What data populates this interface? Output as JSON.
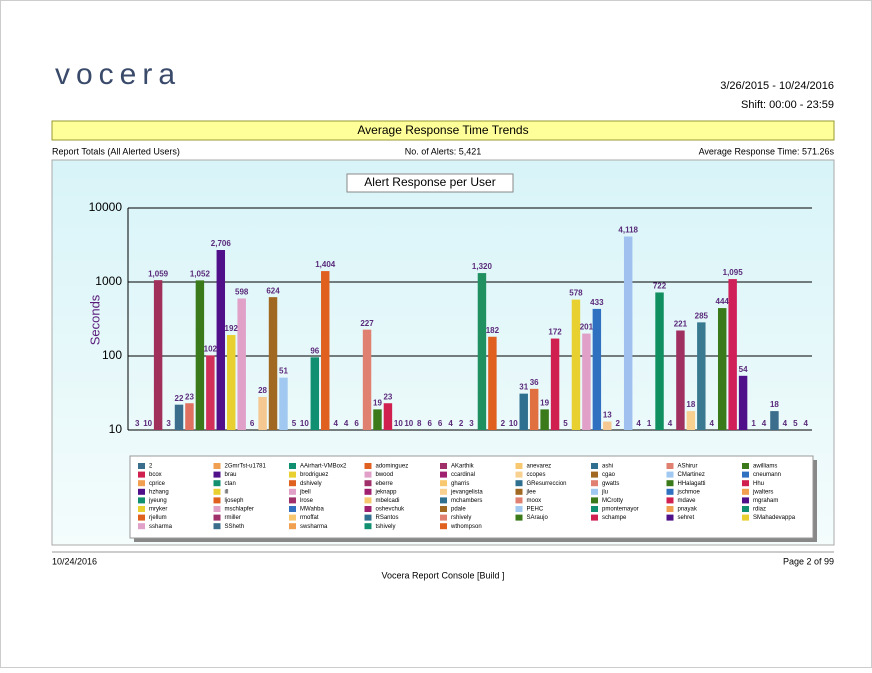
{
  "header": {
    "logo": "vocera",
    "date_range": "3/26/2015 - 10/24/2016",
    "shift": "Shift: 00:00 - 23:59"
  },
  "report": {
    "title": "Average Response Time Trends",
    "totals_label": "Report Totals (All Alerted Users)",
    "alerts": "No. of Alerts: 5,421",
    "avg_time": "Average Response Time: 571.26s"
  },
  "chart_data": {
    "type": "bar",
    "title": "Alert Response per User",
    "y_label": "Seconds",
    "log_scale": true,
    "grid": true,
    "ylim": [
      10,
      10000
    ],
    "yticks": [
      10,
      100,
      1000,
      10000
    ],
    "values": [
      3,
      10,
      1059,
      3,
      22,
      23,
      1052,
      102,
      2706,
      192,
      598,
      6,
      28,
      624,
      51,
      5,
      10,
      96,
      1404,
      4,
      4,
      6,
      227,
      19,
      23,
      10,
      10,
      8,
      6,
      6,
      4,
      2,
      3,
      1320,
      182,
      2,
      10,
      31,
      36,
      19,
      172,
      5,
      578,
      201,
      433,
      13,
      2,
      4118,
      4,
      1,
      722,
      4,
      221,
      18,
      285,
      4,
      444,
      1095,
      54,
      1,
      4,
      18,
      4,
      5,
      4
    ],
    "value_labels": [
      "3",
      "10",
      "1,059",
      "3",
      "22",
      "23",
      "1,052",
      "102",
      "2,706",
      "192",
      "598",
      "6",
      "28",
      "624",
      "51",
      "5",
      "10",
      "96",
      "1,404",
      "4",
      "4",
      "6",
      "227",
      "19",
      "23",
      "10",
      "10",
      "8",
      "6",
      "6",
      "4",
      "2",
      "3",
      "1,320",
      "182",
      "2",
      "10",
      "31",
      "36",
      "19",
      "172",
      "5",
      "578",
      "201",
      "433",
      "13",
      "2",
      "4,118",
      "4",
      "1",
      "722",
      "4",
      "221",
      "18",
      "285",
      "4",
      "444",
      "1,095",
      "54",
      "1",
      "4",
      "18",
      "4",
      "5",
      "4"
    ],
    "colors": [
      "#2f6f8f",
      "#f0a050",
      "#a0305a",
      "#a06820",
      "#3b6e8c",
      "#e07060",
      "#3a7a1a",
      "#d0305a",
      "#50108a",
      "#e8d030",
      "#e0a0c8",
      "#f0a050",
      "#f4c890",
      "#a06820",
      "#a0c8f0",
      "#3070c0",
      "#f0a050",
      "#109070",
      "#e06020",
      "#a0305a",
      "#3a7a1a",
      "#d02050",
      "#e08070",
      "#3a7a1a",
      "#d02050",
      "#e8d030",
      "#f0a050",
      "#a06820",
      "#a0c8f0",
      "#3070c0",
      "#a0305a",
      "#e06020",
      "#3a7a1a",
      "#209060",
      "#e06020",
      "#a0305a",
      "#f0a050",
      "#2f6f8f",
      "#e07040",
      "#3a7a1a",
      "#d02050",
      "#e8d030",
      "#e8d030",
      "#e0a0c8",
      "#3070c0",
      "#f4c890",
      "#a06820",
      "#a0c0f0",
      "#2f6f8f",
      "#e06020",
      "#109060",
      "#3a7a1a",
      "#a03060",
      "#f8d090",
      "#3a7a90",
      "#a0c8f0",
      "#3a7a1a",
      "#d0205a",
      "#50108a",
      "#2f6f8f",
      "#e06020",
      "#3a6e8c",
      "#a0305a",
      "#e07060",
      "#3a7a1a"
    ],
    "legend": [
      {
        "name": "2",
        "color": "#3a6e8c"
      },
      {
        "name": "2GmrTst-u1781",
        "color": "#f0a050"
      },
      {
        "name": "AAirhart-VMBox2",
        "color": "#109070"
      },
      {
        "name": "adominguez",
        "color": "#e06020"
      },
      {
        "name": "AKarthik",
        "color": "#a0306a"
      },
      {
        "name": "anevarez",
        "color": "#f8c870"
      },
      {
        "name": "ashi",
        "color": "#2f6f8f"
      },
      {
        "name": "AShirur",
        "color": "#e08070"
      },
      {
        "name": "awilliams",
        "color": "#3a7a1a"
      },
      {
        "name": "bcox",
        "color": "#d02050"
      },
      {
        "name": "brau",
        "color": "#50108a"
      },
      {
        "name": "brodriguez",
        "color": "#e8d030"
      },
      {
        "name": "bwood",
        "color": "#e0a0c8"
      },
      {
        "name": "ccardinal",
        "color": "#a02070"
      },
      {
        "name": "ccopes",
        "color": "#f8d090"
      },
      {
        "name": "cgao",
        "color": "#a06820"
      },
      {
        "name": "CMartinez",
        "color": "#a0c8f0"
      },
      {
        "name": "cneumann",
        "color": "#3070c0"
      },
      {
        "name": "cprice",
        "color": "#f0a050"
      },
      {
        "name": "ctan",
        "color": "#109070"
      },
      {
        "name": "dshively",
        "color": "#e06020"
      },
      {
        "name": "eberre",
        "color": "#a0306a"
      },
      {
        "name": "gharris",
        "color": "#f8c870"
      },
      {
        "name": "GResurreccion",
        "color": "#2f6f8f"
      },
      {
        "name": "gwatts",
        "color": "#e08070"
      },
      {
        "name": "HHalagatti",
        "color": "#3a7a1a"
      },
      {
        "name": "Hhu",
        "color": "#d02050"
      },
      {
        "name": "hzhang",
        "color": "#50108a"
      },
      {
        "name": "ill",
        "color": "#e8d030"
      },
      {
        "name": "jbell",
        "color": "#e0a0c8"
      },
      {
        "name": "jeknapp",
        "color": "#a02070"
      },
      {
        "name": "jevangelista",
        "color": "#f8d090"
      },
      {
        "name": "jlee",
        "color": "#a06820"
      },
      {
        "name": "jlu",
        "color": "#a0c8f0"
      },
      {
        "name": "jschmoe",
        "color": "#3070c0"
      },
      {
        "name": "jwalters",
        "color": "#f0a050"
      },
      {
        "name": "jyeung",
        "color": "#109070"
      },
      {
        "name": "ljoseph",
        "color": "#e06020"
      },
      {
        "name": "lrose",
        "color": "#a0306a"
      },
      {
        "name": "mbelcadi",
        "color": "#f8c870"
      },
      {
        "name": "mchambers",
        "color": "#2f6f8f"
      },
      {
        "name": "moox",
        "color": "#e08070"
      },
      {
        "name": "MCrotty",
        "color": "#3a7a1a"
      },
      {
        "name": "mdave",
        "color": "#d02050"
      },
      {
        "name": "mgraham",
        "color": "#50108a"
      },
      {
        "name": "mryker",
        "color": "#e8d030"
      },
      {
        "name": "mschlapfer",
        "color": "#e0a0c8"
      },
      {
        "name": "MWahba",
        "color": "#3070c0"
      },
      {
        "name": "oshevchuk",
        "color": "#a02070"
      },
      {
        "name": "pdale",
        "color": "#a06820"
      },
      {
        "name": "PEHC",
        "color": "#a0c8f0"
      },
      {
        "name": "pmontemayor",
        "color": "#109070"
      },
      {
        "name": "pnayak",
        "color": "#f0a050"
      },
      {
        "name": "rdiaz",
        "color": "#109070"
      },
      {
        "name": "rjellum",
        "color": "#e06020"
      },
      {
        "name": "rmiller",
        "color": "#a0306a"
      },
      {
        "name": "rmoffat",
        "color": "#f8c870"
      },
      {
        "name": "RSantos",
        "color": "#2f6f8f"
      },
      {
        "name": "rshively",
        "color": "#e08070"
      },
      {
        "name": "SAraujo",
        "color": "#3a7a1a"
      },
      {
        "name": "schampe",
        "color": "#d02050"
      },
      {
        "name": "sehret",
        "color": "#50108a"
      },
      {
        "name": "SMahadevappa",
        "color": "#e8d030"
      },
      {
        "name": "ssharma",
        "color": "#e0a0c8"
      },
      {
        "name": "SSheth",
        "color": "#3a6e8c"
      },
      {
        "name": "swsharma",
        "color": "#f0a050"
      },
      {
        "name": "tshively",
        "color": "#109070"
      },
      {
        "name": "wthompson",
        "color": "#e06020"
      }
    ]
  },
  "footer": {
    "date": "10/24/2016",
    "page": "Page 2 of 99",
    "console": "Vocera Report Console  [Build ]"
  }
}
